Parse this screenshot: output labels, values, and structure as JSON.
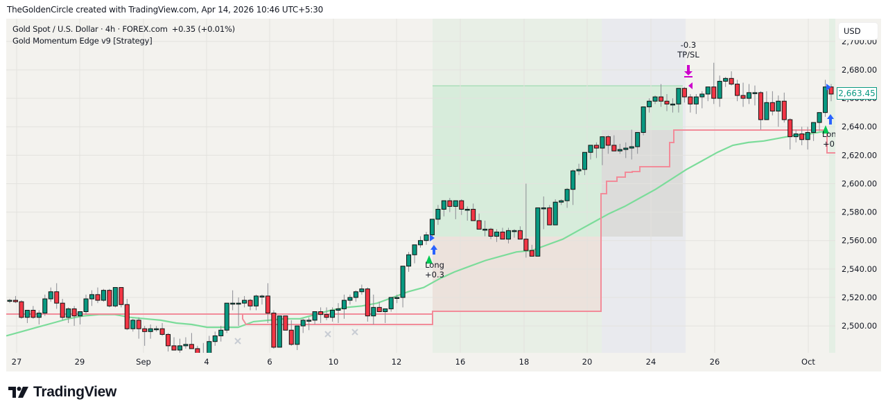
{
  "credit": "TheGoldenCircle created with TradingView.com, Apr 14, 2026 10:46 UTC+5:30",
  "legend": {
    "symbol": "Gold Spot / U.S. Dollar · 4h · FOREX.com",
    "change": "+0.35 (+0.01%)",
    "strategy": "Gold Momentum Edge v9 [Strategy]"
  },
  "currency_button": "USD",
  "last_price_label": "2,663.45",
  "brand": "TradingView",
  "colors": {
    "up": "#089981",
    "down": "#f23645",
    "ma_line": "#7bdc9a",
    "stop_line": "#f28b99",
    "long_arrow": "#00c853",
    "entry_arrow": "#2962ff",
    "exit_marker": "#cc00cc",
    "background": "#f3f2ee"
  },
  "trade_markers": [
    {
      "type": "entry",
      "label": "Long",
      "profit": "+0.3"
    },
    {
      "type": "exit",
      "label": "TP/SL",
      "profit": "-0.3"
    },
    {
      "type": "entry",
      "label": "Lon",
      "profit": "+0."
    }
  ],
  "chart_data": {
    "type": "candlestick",
    "title": "Gold Spot / U.S. Dollar · 4h · FOREX.com",
    "xlabel": "",
    "ylabel": "USD",
    "x_ticks": [
      "27",
      "29",
      "Sep",
      "4",
      "6",
      "10",
      "12",
      "16",
      "18",
      "20",
      "24",
      "26",
      "Oct"
    ],
    "y_ticks": [
      "2,500.00",
      "2,520.00",
      "2,540.00",
      "2,560.00",
      "2,580.00",
      "2,600.00",
      "2,620.00",
      "2,640.00",
      "2,660.00",
      "2,680.00",
      "2,700.00"
    ],
    "ylim": [
      2488,
      2708
    ],
    "grid": true,
    "last_price": 2663.45,
    "candles": [
      [
        2518,
        2519,
        2516,
        2518
      ],
      [
        2518,
        2521,
        2516,
        2517
      ],
      [
        2517,
        2518,
        2505,
        2506
      ],
      [
        2506,
        2511,
        2502,
        2511
      ],
      [
        2511,
        2514,
        2505,
        2506
      ],
      [
        2506,
        2511,
        2501,
        2509
      ],
      [
        2509,
        2522,
        2507,
        2519
      ],
      [
        2519,
        2527,
        2517,
        2524
      ],
      [
        2524,
        2530,
        2512,
        2516
      ],
      [
        2516,
        2519,
        2504,
        2506
      ],
      [
        2506,
        2513,
        2502,
        2512
      ],
      [
        2512,
        2514,
        2500,
        2507
      ],
      [
        2507,
        2508,
        2501,
        2510
      ],
      [
        2510,
        2522,
        2508,
        2519
      ],
      [
        2519,
        2525,
        2514,
        2522
      ],
      [
        2522,
        2527,
        2516,
        2518
      ],
      [
        2518,
        2526,
        2517,
        2525
      ],
      [
        2525,
        2526,
        2513,
        2514
      ],
      [
        2514,
        2524,
        2513,
        2527
      ],
      [
        2527,
        2527,
        2513,
        2515
      ],
      [
        2515,
        2519,
        2497,
        2498
      ],
      [
        2498,
        2505,
        2496,
        2504
      ],
      [
        2504,
        2506,
        2491,
        2498
      ],
      [
        2498,
        2500,
        2486,
        2496
      ],
      [
        2496,
        2501,
        2491,
        2498
      ],
      [
        2498,
        2500,
        2496,
        2498
      ],
      [
        2498,
        2502,
        2493,
        2494
      ],
      [
        2494,
        2495,
        2482,
        2486
      ],
      [
        2486,
        2492,
        2484,
        2483
      ],
      [
        2483,
        2491,
        2481,
        2486
      ],
      [
        2486,
        2492,
        2484,
        2487
      ],
      [
        2487,
        2495,
        2484,
        2484
      ],
      [
        2484,
        2486,
        2484,
        2476
      ],
      [
        2476,
        2488,
        2470,
        2476
      ],
      [
        2476,
        2493,
        2476,
        2489
      ],
      [
        2489,
        2496,
        2486,
        2493
      ],
      [
        2493,
        2500,
        2489,
        2497
      ],
      [
        2497,
        2516,
        2495,
        2516
      ],
      [
        2516,
        2525,
        2511,
        2516
      ],
      [
        2516,
        2520,
        2500,
        2516
      ],
      [
        2516,
        2521,
        2513,
        2518
      ],
      [
        2518,
        2519,
        2511,
        2514
      ],
      [
        2514,
        2522,
        2511,
        2521
      ],
      [
        2521,
        2522,
        2515,
        2521
      ],
      [
        2521,
        2530,
        2502,
        2509
      ],
      [
        2509,
        2511,
        2484,
        2485
      ],
      [
        2485,
        2502,
        2491,
        2507
      ],
      [
        2507,
        2506,
        2500,
        2497
      ],
      [
        2497,
        2504,
        2486,
        2487
      ],
      [
        2487,
        2499,
        2483,
        2500
      ],
      [
        2500,
        2505,
        2495,
        2504
      ],
      [
        2504,
        2506,
        2497,
        2504
      ],
      [
        2504,
        2509,
        2501,
        2510
      ],
      [
        2510,
        2513,
        2502,
        2508
      ],
      [
        2508,
        2513,
        2504,
        2506
      ],
      [
        2506,
        2513,
        2503,
        2511
      ],
      [
        2511,
        2516,
        2502,
        2512
      ],
      [
        2512,
        2522,
        2505,
        2518
      ],
      [
        2518,
        2522,
        2515,
        2520
      ],
      [
        2520,
        2525,
        2517,
        2524
      ],
      [
        2524,
        2529,
        2522,
        2526
      ],
      [
        2526,
        2527,
        2503,
        2507
      ],
      [
        2507,
        2522,
        2501,
        2513
      ],
      [
        2513,
        2517,
        2510,
        2510
      ],
      [
        2510,
        2511,
        2502,
        2512
      ],
      [
        2512,
        2519,
        2510,
        2520
      ],
      [
        2520,
        2522,
        2516,
        2520
      ],
      [
        2520,
        2541,
        2513,
        2542
      ],
      [
        2542,
        2552,
        2538,
        2550
      ],
      [
        2550,
        2557,
        2544,
        2557
      ],
      [
        2557,
        2563,
        2555,
        2560
      ],
      [
        2560,
        2566,
        2557,
        2564
      ],
      [
        2564,
        2575,
        2562,
        2575
      ],
      [
        2575,
        2585,
        2571,
        2582
      ],
      [
        2582,
        2586,
        2577,
        2588
      ],
      [
        2588,
        2590,
        2580,
        2584
      ],
      [
        2584,
        2587,
        2575,
        2588
      ],
      [
        2588,
        2589,
        2578,
        2582
      ],
      [
        2582,
        2584,
        2574,
        2582
      ],
      [
        2582,
        2586,
        2575,
        2574
      ],
      [
        2574,
        2579,
        2568,
        2568
      ],
      [
        2568,
        2574,
        2563,
        2568
      ],
      [
        2568,
        2569,
        2561,
        2563
      ],
      [
        2563,
        2568,
        2559,
        2566
      ],
      [
        2566,
        2569,
        2562,
        2561
      ],
      [
        2561,
        2569,
        2558,
        2567
      ],
      [
        2567,
        2568,
        2562,
        2567
      ],
      [
        2567,
        2570,
        2562,
        2561
      ],
      [
        2561,
        2600,
        2548,
        2553
      ],
      [
        2553,
        2557,
        2551,
        2549
      ],
      [
        2549,
        2582,
        2552,
        2583
      ],
      [
        2583,
        2591,
        2568,
        2583
      ],
      [
        2583,
        2585,
        2575,
        2571
      ],
      [
        2571,
        2589,
        2575,
        2587
      ],
      [
        2587,
        2589,
        2585,
        2588
      ],
      [
        2588,
        2597,
        2583,
        2596
      ],
      [
        2596,
        2610,
        2585,
        2609
      ],
      [
        2609,
        2614,
        2606,
        2610
      ],
      [
        2610,
        2620,
        2606,
        2622
      ],
      [
        2622,
        2626,
        2617,
        2627
      ],
      [
        2627,
        2629,
        2618,
        2625
      ],
      [
        2625,
        2631,
        2613,
        2633
      ],
      [
        2633,
        2634,
        2621,
        2627
      ],
      [
        2627,
        2634,
        2625,
        2623
      ],
      [
        2623,
        2628,
        2621,
        2624
      ],
      [
        2624,
        2629,
        2618,
        2625
      ],
      [
        2625,
        2638,
        2617,
        2626
      ],
      [
        2626,
        2630,
        2621,
        2636
      ],
      [
        2636,
        2652,
        2634,
        2654
      ],
      [
        2654,
        2660,
        2650,
        2658
      ],
      [
        2658,
        2662,
        2656,
        2661
      ],
      [
        2661,
        2670,
        2654,
        2658
      ],
      [
        2658,
        2663,
        2651,
        2656
      ],
      [
        2656,
        2660,
        2650,
        2656
      ],
      [
        2656,
        2665,
        2650,
        2667
      ],
      [
        2667,
        2668,
        2657,
        2661
      ],
      [
        2661,
        2663,
        2650,
        2656
      ],
      [
        2656,
        2663,
        2649,
        2661
      ],
      [
        2661,
        2665,
        2653,
        2663
      ],
      [
        2663,
        2668,
        2658,
        2668
      ],
      [
        2668,
        2685,
        2656,
        2660
      ],
      [
        2660,
        2676,
        2654,
        2672
      ],
      [
        2672,
        2675,
        2668,
        2674
      ],
      [
        2674,
        2679,
        2669,
        2670
      ],
      [
        2670,
        2673,
        2658,
        2662
      ],
      [
        2662,
        2671,
        2654,
        2660
      ],
      [
        2660,
        2670,
        2656,
        2664
      ],
      [
        2664,
        2669,
        2655,
        2664
      ],
      [
        2664,
        2665,
        2638,
        2645
      ],
      [
        2645,
        2665,
        2646,
        2657
      ],
      [
        2657,
        2665,
        2648,
        2651
      ],
      [
        2651,
        2662,
        2640,
        2658
      ],
      [
        2658,
        2664,
        2643,
        2645
      ],
      [
        2645,
        2646,
        2624,
        2633
      ],
      [
        2633,
        2638,
        2629,
        2635
      ],
      [
        2635,
        2640,
        2627,
        2631
      ],
      [
        2631,
        2640,
        2624,
        2636
      ],
      [
        2636,
        2640,
        2630,
        2643
      ],
      [
        2643,
        2649,
        2637,
        2650
      ],
      [
        2650,
        2673,
        2647,
        2668
      ],
      [
        2668,
        2670,
        2658,
        2663
      ]
    ],
    "series": [
      {
        "name": "MA (green)",
        "type": "line",
        "values": [
          2493,
          2496,
          2499,
          2502,
          2505,
          2507,
          2508,
          2508,
          2506,
          2505,
          2504,
          2502,
          2501,
          2499,
          2499,
          2499,
          2503,
          2504,
          2505,
          2505,
          2508,
          2511,
          2513,
          2514,
          2516,
          2520,
          2524,
          2527,
          2533,
          2538,
          2542,
          2546,
          2549,
          2552,
          2553,
          2557,
          2561,
          2567,
          2573,
          2579,
          2584,
          2590,
          2596,
          2603,
          2610,
          2616,
          2622,
          2627,
          2629,
          2630,
          2632,
          2634,
          2635,
          2637
        ]
      },
      {
        "name": "Trailing stop (red)",
        "type": "step",
        "values": [
          2509,
          2509,
          2509,
          2509,
          2509,
          2509,
          2509,
          2509,
          2509,
          2507,
          2503,
          2501,
          2503,
          2511,
          2511,
          2511,
          2511,
          2511,
          2511,
          2593,
          2598,
          2603,
          2606,
          2610,
          2620,
          2637,
          2637,
          2637,
          2637,
          2637,
          2637,
          2637,
          2638,
          2622
        ]
      }
    ],
    "shaded_regions": [
      {
        "name": "profit zone",
        "color": "#d5ecdc",
        "from_price": 2564,
        "to_price": 2669
      },
      {
        "name": "loss zone",
        "color": "#ece1dc",
        "from_price": 2509,
        "to_price": 2564
      },
      {
        "name": "stop-gap region",
        "color": "#dcdcdc",
        "from_price": 2564,
        "to_price": 2637
      }
    ]
  }
}
